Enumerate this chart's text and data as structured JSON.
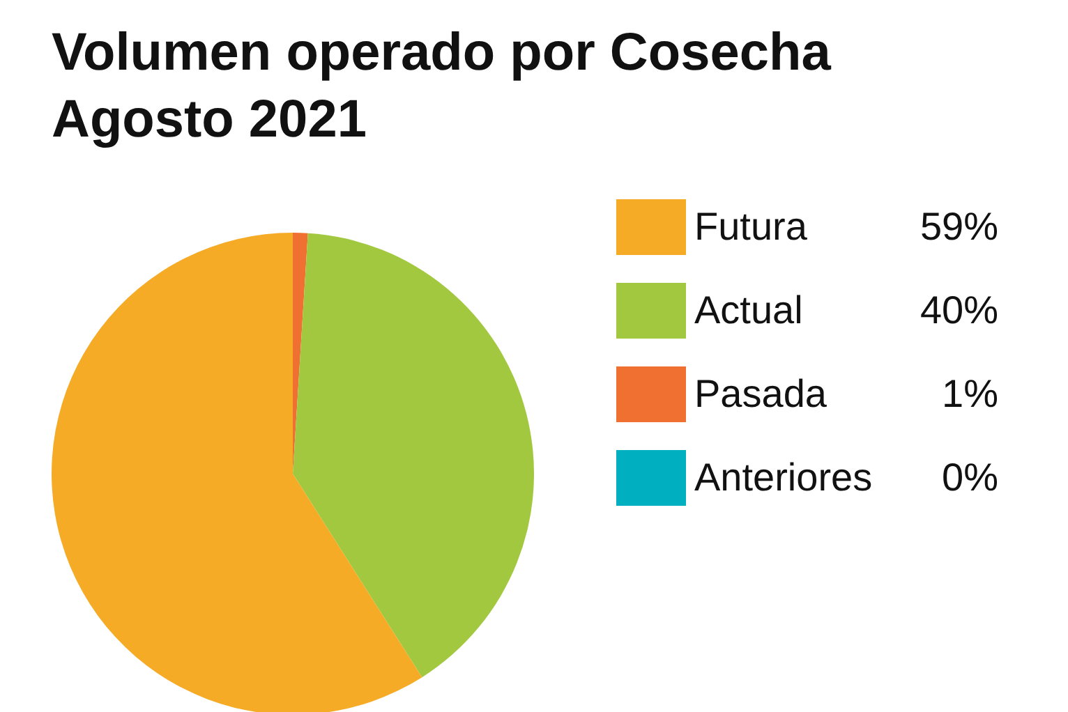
{
  "chart_data": {
    "type": "pie",
    "title": "Volumen operado por Cosecha",
    "subtitle": "Agosto 2021",
    "categories": [
      "Futura",
      "Actual",
      "Pasada",
      "Anteriores"
    ],
    "values": [
      59,
      40,
      1,
      0
    ],
    "colors": [
      "#f5ab26",
      "#a2c83f",
      "#ef7030",
      "#00b0c0"
    ],
    "value_labels": [
      "59%",
      "40%",
      "1%",
      "0%"
    ],
    "legend": "right"
  }
}
